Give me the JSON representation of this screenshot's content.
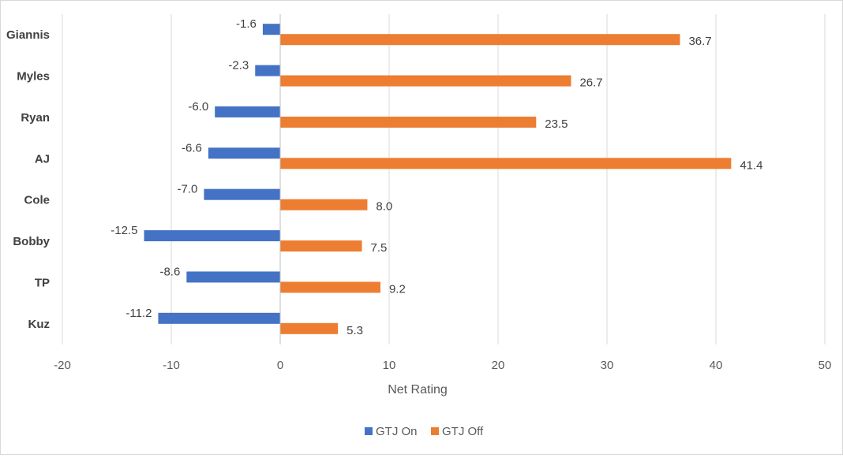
{
  "chart_data": {
    "type": "bar",
    "orientation": "horizontal",
    "title": "",
    "categories": [
      "Giannis",
      "Myles",
      "Ryan",
      "AJ",
      "Cole",
      "Bobby",
      "TP",
      "Kuz"
    ],
    "series": [
      {
        "name": "GTJ On",
        "color": "#4472c4",
        "values": [
          -1.6,
          -2.3,
          -6.0,
          -6.6,
          -7.0,
          -12.5,
          -8.6,
          -11.2
        ],
        "labels": [
          "-1.6",
          "-2.3",
          "-6.0",
          "-6.6",
          "-7.0",
          "-12.5",
          "-8.6",
          "-11.2"
        ]
      },
      {
        "name": "GTJ Off",
        "color": "#ed7d31",
        "values": [
          36.7,
          26.7,
          23.5,
          41.4,
          8.0,
          7.5,
          9.2,
          5.3
        ],
        "labels": [
          "36.7",
          "26.7",
          "23.5",
          "41.4",
          "8.0",
          "7.5",
          "9.2",
          "5.3"
        ]
      }
    ],
    "xlabel": "Net Rating",
    "ylabel": "",
    "xlim": [
      -20,
      50
    ],
    "xticks": [
      -20,
      -10,
      0,
      10,
      20,
      30,
      40,
      50
    ],
    "xtick_labels": [
      "-20",
      "-10",
      "0",
      "10",
      "20",
      "30",
      "40",
      "50"
    ],
    "grid": true,
    "legend_position": "bottom",
    "gridline_color": "#d9d9d9",
    "axis_color": "#bfbfbf"
  }
}
